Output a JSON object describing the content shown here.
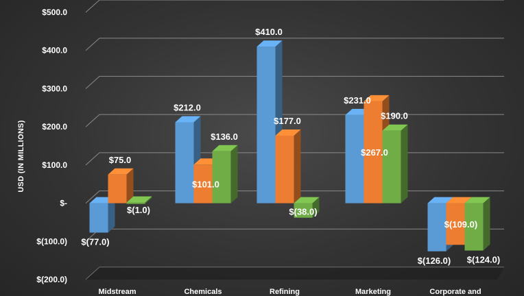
{
  "chart_data": {
    "type": "bar",
    "style": "3d-clustered-column",
    "ylabel": "USD (IN MILLIONS)",
    "ylim": [
      -200,
      500
    ],
    "yticks": [
      500,
      400,
      300,
      200,
      100,
      0,
      -100,
      -200
    ],
    "ytick_labels": [
      "$500.0",
      "$400.0",
      "$300.0",
      "$200.0",
      "$100.0",
      "$-",
      "$(100.0)",
      "$(200.0)"
    ],
    "categories": [
      "Midstream",
      "Chemicals",
      "Refining",
      "Marketing",
      "Corporate and"
    ],
    "grid": true,
    "legend": "none",
    "series": [
      {
        "color": "#5b9bd5",
        "values": [
          -77,
          212,
          410,
          231,
          -126
        ],
        "labels": [
          "$(77.0)",
          "$212.0",
          "$410.0",
          "$231.0",
          "$(126.0)"
        ]
      },
      {
        "color": "#ed7d31",
        "values": [
          75,
          101,
          177,
          267,
          -109
        ],
        "labels": [
          "$75.0",
          "$101.0",
          "$177.0",
          "$267.0",
          "$(109.0)"
        ]
      },
      {
        "color": "#70ad47",
        "values": [
          -1,
          136,
          -38,
          190,
          -124
        ],
        "labels": [
          "$(1.0)",
          "$136.0",
          "$(38.0)",
          "$190.0",
          "$(124.0)"
        ]
      }
    ]
  }
}
